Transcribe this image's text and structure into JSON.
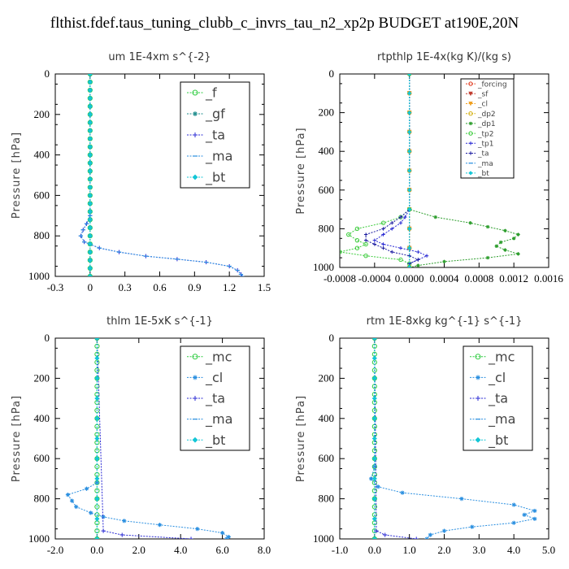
{
  "figure": {
    "title": "flthist.fdef.taus_tuning_clubb_c_invrs_tau_n2_xp2p  BUDGET at190E,20N"
  },
  "chart_data": [
    {
      "type": "line",
      "title": "um   1E-4xm s^{-2}",
      "ylabel": "Pressure [hPa]",
      "xlabel": "",
      "xlim": [
        -0.3,
        1.5
      ],
      "ylim": [
        1000,
        0
      ],
      "xticks": [
        "-0.3",
        "0",
        "0.3",
        "0.6",
        "0.9",
        "1.2",
        "1.5"
      ],
      "xtick_values": [
        -0.3,
        0,
        0.3,
        0.6,
        0.9,
        1.2,
        1.5
      ],
      "yticks": [
        "0",
        "200",
        "400",
        "600",
        "800",
        "1000"
      ],
      "legend_size": "large",
      "series": [
        {
          "name": "_f",
          "color": "#2ecc40",
          "marker": "circle",
          "pressure": [
            0,
            40,
            80,
            120,
            160,
            200,
            240,
            280,
            320,
            360,
            400,
            440,
            480,
            520,
            560,
            600,
            640,
            680,
            720,
            760,
            800,
            840,
            880,
            920,
            960,
            1000
          ],
          "values": [
            0,
            0,
            0,
            0,
            0,
            0,
            0,
            0,
            0,
            0,
            0,
            0,
            0,
            0,
            0,
            0,
            0,
            0,
            0,
            0,
            0,
            0,
            0,
            0,
            0,
            0
          ]
        },
        {
          "name": "_gf",
          "color": "#1e8c8c",
          "marker": "star",
          "pressure": [
            0,
            40,
            80,
            120,
            160,
            200,
            240,
            280,
            320,
            360,
            400,
            440,
            480,
            520,
            560,
            600,
            640,
            680,
            720,
            760,
            800,
            840,
            880,
            920,
            960,
            1000
          ],
          "values": [
            0,
            0,
            0,
            0,
            0,
            0,
            0,
            0,
            0,
            0,
            0,
            0,
            0,
            0,
            0,
            0,
            0,
            0,
            0,
            0,
            0,
            0,
            0,
            0,
            0,
            0
          ]
        },
        {
          "name": "_ta",
          "color": "#2a2ad4",
          "marker": "plus",
          "pressure": [
            0,
            700,
            740,
            770,
            800,
            830,
            860,
            880,
            900,
            915,
            930,
            950,
            970,
            990,
            1000
          ],
          "values": [
            0,
            0,
            -0.03,
            -0.06,
            -0.08,
            -0.05,
            0.08,
            0.25,
            0.48,
            0.75,
            1.0,
            1.2,
            1.27,
            1.3,
            1.31
          ]
        },
        {
          "name": "_ma",
          "color": "#2a8fe0",
          "marker": "dash",
          "pressure": [
            0,
            700,
            740,
            770,
            800,
            830,
            860,
            880,
            900,
            915,
            930,
            950,
            970,
            990,
            1000
          ],
          "values": [
            0,
            0,
            -0.03,
            -0.06,
            -0.08,
            -0.05,
            0.08,
            0.25,
            0.48,
            0.75,
            1.0,
            1.2,
            1.27,
            1.3,
            1.31
          ]
        },
        {
          "name": "_bt",
          "color": "#13c6d6",
          "marker": "diamond",
          "pressure": [
            0,
            40,
            80,
            120,
            160,
            200,
            240,
            280,
            320,
            360,
            400,
            440,
            480,
            520,
            560,
            600,
            640,
            680,
            720,
            760,
            800,
            840,
            880,
            920,
            960,
            1000
          ],
          "values": [
            0,
            0,
            0,
            0,
            0,
            0,
            0,
            0,
            0,
            0,
            0,
            0,
            0,
            0,
            0,
            0,
            0,
            0,
            0,
            0,
            0,
            0,
            0,
            0,
            0,
            0
          ]
        }
      ]
    },
    {
      "type": "line",
      "title": "rtpthlp   1E-4x(kg K)/(kg s)",
      "ylabel": "Pressure [hPa]",
      "xlabel": "",
      "xlim": [
        -0.0008,
        0.0016
      ],
      "ylim": [
        1000,
        0
      ],
      "xticks": [
        "-0.0008",
        "-0.0004",
        "0.0000",
        "0.0004",
        "0.0008",
        "0.0012",
        "0.0016"
      ],
      "xtick_values": [
        -0.0008,
        -0.0004,
        0.0,
        0.0004,
        0.0008,
        0.0012,
        0.0016
      ],
      "yticks": [
        "0",
        "200",
        "400",
        "600",
        "800",
        "1000"
      ],
      "legend_size": "small",
      "series": [
        {
          "name": "_forcing",
          "color": "#e03a1e",
          "marker": "circle",
          "pressure": [
            0,
            100,
            200,
            300,
            400,
            500,
            600,
            700,
            800,
            900,
            1000
          ],
          "values": [
            0,
            0,
            0,
            0,
            0,
            0,
            0,
            0,
            0,
            0,
            0
          ]
        },
        {
          "name": "_sf",
          "color": "#c0392b",
          "marker": "triangle",
          "pressure": [
            0,
            100,
            200,
            300,
            400,
            500,
            600,
            700,
            800,
            900,
            1000
          ],
          "values": [
            0,
            0,
            0,
            0,
            0,
            0,
            0,
            0,
            0,
            0,
            0
          ]
        },
        {
          "name": "_cl",
          "color": "#f0a020",
          "marker": "triangle",
          "pressure": [
            0,
            100,
            200,
            300,
            400,
            500,
            600,
            700,
            800,
            900,
            1000
          ],
          "values": [
            0,
            0,
            0,
            0,
            0,
            0,
            0,
            0,
            0,
            0,
            0
          ]
        },
        {
          "name": "_dp2",
          "color": "#d4b012",
          "marker": "circle",
          "pressure": [
            0,
            100,
            200,
            300,
            400,
            500,
            600,
            700,
            800,
            900,
            1000
          ],
          "values": [
            0,
            0,
            0,
            0,
            0,
            0,
            0,
            0,
            0,
            0,
            0
          ]
        },
        {
          "name": "_dp1",
          "color": "#2e9e2e",
          "marker": "star",
          "pressure": [
            0,
            700,
            740,
            770,
            790,
            810,
            830,
            850,
            870,
            890,
            910,
            930,
            950,
            970,
            990,
            1000
          ],
          "values": [
            0,
            0,
            0.0003,
            0.0007,
            0.0009,
            0.0011,
            0.00125,
            0.0012,
            0.00105,
            0.001,
            0.0011,
            0.00125,
            0.0009,
            0.0004,
            0.0001,
            0
          ]
        },
        {
          "name": "_tp2",
          "color": "#3acb3a",
          "marker": "circle",
          "pressure": [
            0,
            700,
            740,
            770,
            800,
            830,
            860,
            880,
            900,
            920,
            940,
            960,
            980,
            1000
          ],
          "values": [
            0,
            0,
            -0.0001,
            -0.0003,
            -0.0006,
            -0.0007,
            -0.0006,
            -0.0005,
            -0.0006,
            -0.0008,
            -0.0005,
            -0.0001,
            0,
            0
          ]
        },
        {
          "name": "_tp1",
          "color": "#2a2ad4",
          "marker": "plus",
          "pressure": [
            0,
            700,
            740,
            770,
            800,
            830,
            860,
            880,
            900,
            920,
            940,
            960,
            980,
            1000
          ],
          "values": [
            0,
            0,
            -5e-05,
            -0.0001,
            -0.0002,
            -0.0003,
            -0.0004,
            -0.0003,
            -0.0001,
            0.0001,
            0.0002,
            0.0001,
            0,
            0
          ]
        },
        {
          "name": "_ta",
          "color": "#1a1aa0",
          "marker": "plus",
          "pressure": [
            0,
            700,
            740,
            770,
            800,
            830,
            860,
            880,
            900,
            920,
            940,
            960,
            980,
            1000
          ],
          "values": [
            0,
            0,
            -0.0001,
            -0.0002,
            -0.0003,
            -0.0005,
            -0.0005,
            -0.0004,
            -0.0003,
            -0.0002,
            0,
            0.0001,
            0,
            0
          ]
        },
        {
          "name": "_ma",
          "color": "#2a8fe0",
          "marker": "dash",
          "pressure": [
            0,
            100,
            200,
            300,
            400,
            500,
            600,
            700,
            800,
            900,
            1000
          ],
          "values": [
            0,
            0,
            0,
            0,
            0,
            0,
            0,
            0,
            0,
            0,
            0
          ]
        },
        {
          "name": "_bt",
          "color": "#13c6d6",
          "marker": "diamond",
          "pressure": [
            0,
            100,
            200,
            300,
            400,
            500,
            600,
            700,
            800,
            900,
            1000
          ],
          "values": [
            0,
            0,
            0,
            0,
            0,
            0,
            0,
            0,
            0,
            0,
            0
          ]
        }
      ]
    },
    {
      "type": "line",
      "title": "thlm   1E-5xK s^{-1}",
      "ylabel": "Pressure [hPa]",
      "xlabel": "",
      "xlim": [
        -2.0,
        8.0
      ],
      "ylim": [
        1000,
        0
      ],
      "xticks": [
        "-2.0",
        "0.0",
        "2.0",
        "4.0",
        "6.0",
        "8.0"
      ],
      "xtick_values": [
        -2.0,
        0.0,
        2.0,
        4.0,
        6.0,
        8.0
      ],
      "yticks": [
        "0",
        "200",
        "400",
        "600",
        "800",
        "1000"
      ],
      "legend_size": "large",
      "series": [
        {
          "name": "_mc",
          "color": "#2ecc40",
          "marker": "circle",
          "pressure": [
            0,
            40,
            80,
            120,
            160,
            200,
            240,
            280,
            320,
            360,
            400,
            440,
            480,
            520,
            560,
            600,
            640,
            680,
            720,
            760,
            800,
            840,
            880,
            920,
            960,
            1000
          ],
          "values": [
            0,
            0,
            0,
            0,
            0,
            0,
            0,
            0,
            0,
            0,
            0,
            0,
            0,
            0,
            0,
            0,
            0,
            0,
            0,
            0,
            0,
            0,
            0,
            0,
            0,
            0
          ]
        },
        {
          "name": "_cl",
          "color": "#2a8fe0",
          "marker": "star",
          "pressure": [
            0,
            720,
            750,
            780,
            810,
            840,
            870,
            890,
            910,
            930,
            950,
            970,
            990,
            1000
          ],
          "values": [
            0,
            0,
            -0.5,
            -1.4,
            -1.2,
            -1.0,
            -0.3,
            0.3,
            1.3,
            3.0,
            4.8,
            6.0,
            6.3,
            6.2
          ]
        },
        {
          "name": "_ta",
          "color": "#2a2ad4",
          "marker": "plus",
          "pressure": [
            0,
            960,
            980,
            1000
          ],
          "values": [
            0,
            0.3,
            1.2,
            4.5
          ]
        },
        {
          "name": "_ma",
          "color": "#2a8fe0",
          "marker": "dash",
          "pressure": [
            0,
            100,
            200,
            300,
            400,
            500,
            600,
            700,
            800,
            900,
            1000
          ],
          "values": [
            0,
            0,
            0,
            0,
            0,
            0,
            0,
            0,
            0,
            0,
            0
          ]
        },
        {
          "name": "_bt",
          "color": "#13c6d6",
          "marker": "diamond",
          "pressure": [
            0,
            100,
            200,
            300,
            400,
            500,
            600,
            700,
            800,
            900,
            1000
          ],
          "values": [
            0,
            0,
            0,
            0,
            0,
            0,
            0,
            0,
            0,
            0,
            0
          ]
        }
      ]
    },
    {
      "type": "line",
      "title": "rtm   1E-8xkg kg^{-1} s^{-1}",
      "ylabel": "Pressure [hPa]",
      "xlabel": "",
      "xlim": [
        -1.0,
        5.0
      ],
      "ylim": [
        1000,
        0
      ],
      "xticks": [
        "-1.0",
        "0.0",
        "1.0",
        "2.0",
        "3.0",
        "4.0",
        "5.0"
      ],
      "xtick_values": [
        -1.0,
        0.0,
        1.0,
        2.0,
        3.0,
        4.0,
        5.0
      ],
      "yticks": [
        "0",
        "200",
        "400",
        "600",
        "800",
        "1000"
      ],
      "legend_size": "large",
      "series": [
        {
          "name": "_mc",
          "color": "#2ecc40",
          "marker": "circle",
          "pressure": [
            0,
            40,
            80,
            120,
            160,
            200,
            240,
            280,
            320,
            360,
            400,
            440,
            480,
            520,
            560,
            600,
            640,
            680,
            720,
            760,
            800,
            840,
            880,
            920,
            960,
            1000
          ],
          "values": [
            0,
            0,
            0,
            0,
            0,
            0,
            0,
            0,
            0,
            0,
            0,
            0,
            0,
            0,
            0,
            0,
            0,
            0,
            0,
            0,
            0,
            0,
            0,
            0,
            0,
            0
          ]
        },
        {
          "name": "_cl",
          "color": "#2a8fe0",
          "marker": "star",
          "pressure": [
            0,
            640,
            700,
            740,
            770,
            800,
            830,
            860,
            880,
            900,
            920,
            940,
            960,
            980,
            1000
          ],
          "values": [
            0,
            0,
            -0.1,
            0.1,
            0.8,
            2.5,
            4.0,
            4.6,
            4.3,
            4.6,
            4.0,
            2.8,
            2.0,
            1.6,
            1.5
          ]
        },
        {
          "name": "_ta",
          "color": "#2a2ad4",
          "marker": "plus",
          "pressure": [
            0,
            960,
            980,
            1000
          ],
          "values": [
            0,
            0.05,
            0.3,
            1.2
          ]
        },
        {
          "name": "_ma",
          "color": "#2a8fe0",
          "marker": "dash",
          "pressure": [
            0,
            100,
            200,
            300,
            400,
            500,
            600,
            700,
            800,
            900,
            1000
          ],
          "values": [
            0,
            0,
            0,
            0,
            0,
            0,
            0,
            0,
            0,
            0,
            0
          ]
        },
        {
          "name": "_bt",
          "color": "#13c6d6",
          "marker": "diamond",
          "pressure": [
            0,
            100,
            200,
            300,
            400,
            500,
            600,
            700,
            800,
            900,
            1000
          ],
          "values": [
            0,
            0,
            0,
            0,
            0,
            0,
            0,
            0,
            0,
            0,
            0
          ]
        }
      ]
    }
  ]
}
